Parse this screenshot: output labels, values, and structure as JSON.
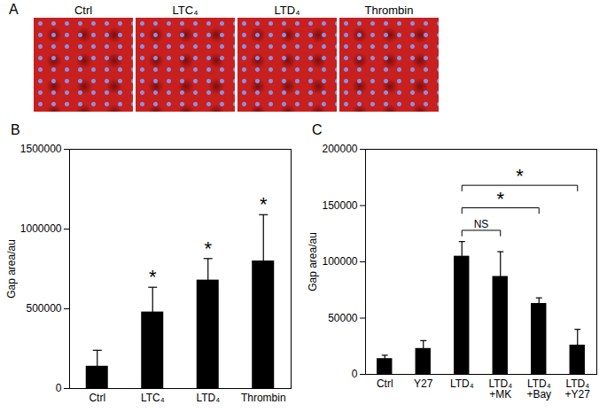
{
  "image_panel": {
    "label": "A",
    "images": [
      "Ctrl",
      "LTC₄",
      "LTD₄",
      "Thrombin"
    ]
  },
  "chart_data": [
    {
      "type": "bar",
      "title": "B",
      "y_label": "Gap area/au",
      "categories": [
        "Ctrl",
        "LTC₄",
        "LTD₄",
        "Thrombin"
      ],
      "values": [
        140000,
        480000,
        680000,
        800000
      ],
      "errors": [
        100000,
        155000,
        135000,
        290000
      ],
      "significance": [
        null,
        "*",
        "*",
        "*"
      ],
      "color": "#000000",
      "ylim": [
        0,
        1500000
      ],
      "yticks": [
        0,
        500000,
        1000000,
        1500000
      ]
    },
    {
      "type": "bar",
      "title": "C",
      "y_label": "Gap area/au",
      "categories": [
        "Ctrl",
        "Y27",
        "LTD₄",
        "LTD₄\n+MK",
        "LTD₄\n+Bay",
        "LTD₄\n+Y27"
      ],
      "values": [
        14000,
        23000,
        105000,
        87000,
        63000,
        26000
      ],
      "errors": [
        3000,
        7000,
        13000,
        22000,
        5000,
        14000
      ],
      "comparisons": [
        {
          "from": "LTD₄",
          "to": "LTD₄\n+MK",
          "label": "NS"
        },
        {
          "from": "LTD₄",
          "to": "LTD₄\n+Bay",
          "label": "*"
        },
        {
          "from": "LTD₄",
          "to": "LTD₄\n+Y27",
          "label": "*"
        }
      ],
      "color": "#000000",
      "ylim": [
        0,
        200000
      ],
      "yticks": [
        0,
        50000,
        100000,
        150000,
        200000
      ]
    }
  ]
}
